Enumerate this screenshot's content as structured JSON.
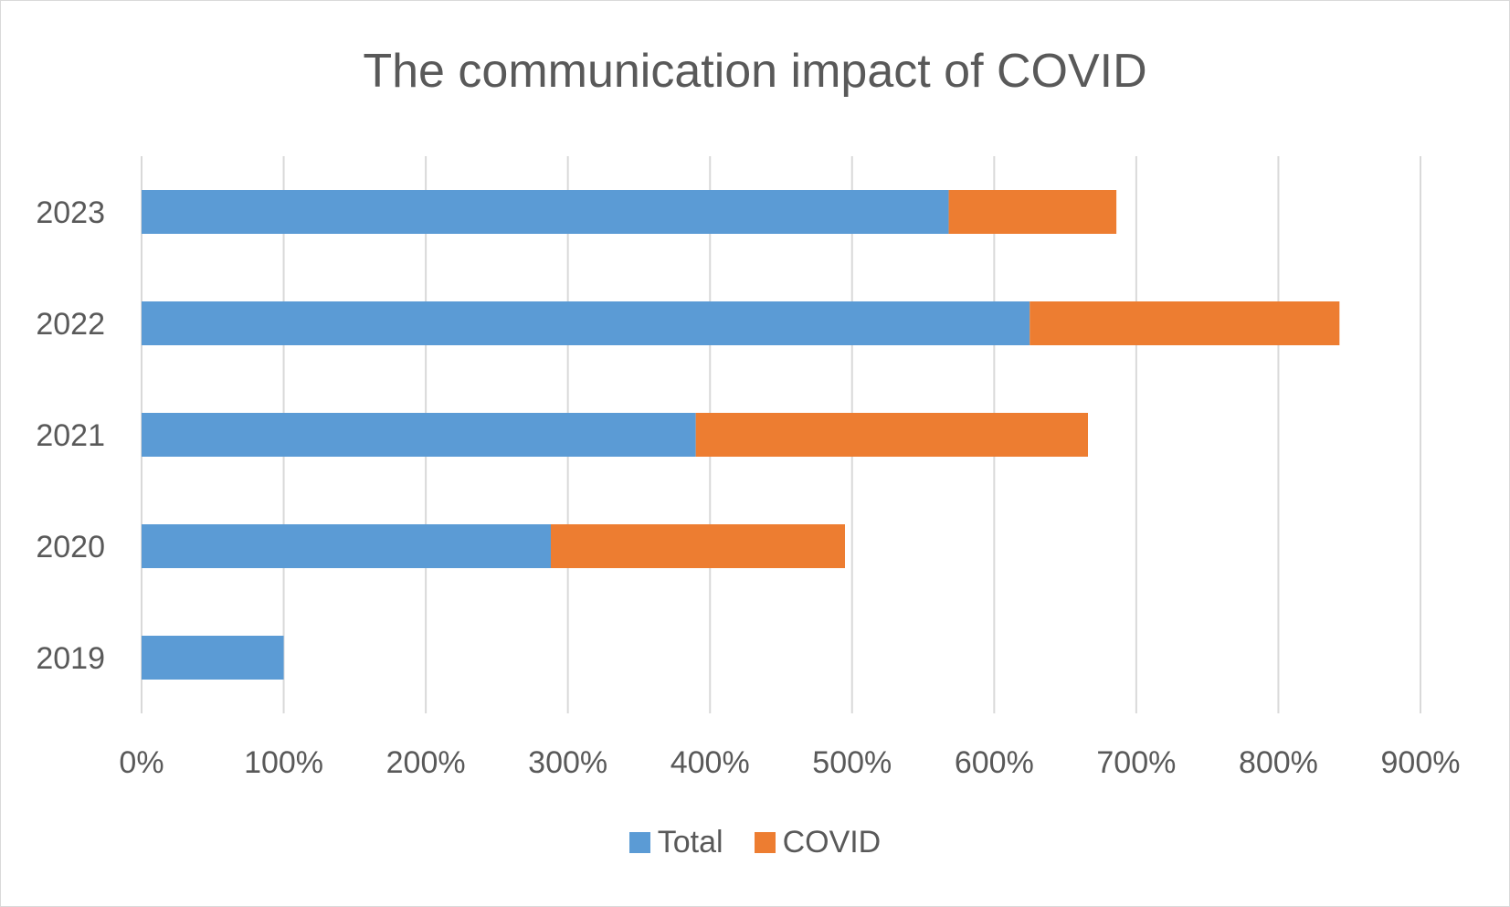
{
  "chart_data": {
    "type": "bar",
    "orientation": "horizontal",
    "stacked": true,
    "title": "The communication impact of COVID",
    "categories": [
      "2019",
      "2020",
      "2021",
      "2022",
      "2023"
    ],
    "series": [
      {
        "name": "Total",
        "color": "#5B9BD5",
        "values": [
          100,
          288,
          390,
          625,
          568
        ]
      },
      {
        "name": "COVID",
        "color": "#ED7D31",
        "values": [
          0,
          207,
          276,
          218,
          118
        ]
      }
    ],
    "x_ticks": [
      "0%",
      "100%",
      "200%",
      "300%",
      "400%",
      "500%",
      "600%",
      "700%",
      "800%",
      "900%"
    ],
    "xlim": [
      0,
      900
    ],
    "grid": "vertical",
    "legend_position": "bottom"
  }
}
